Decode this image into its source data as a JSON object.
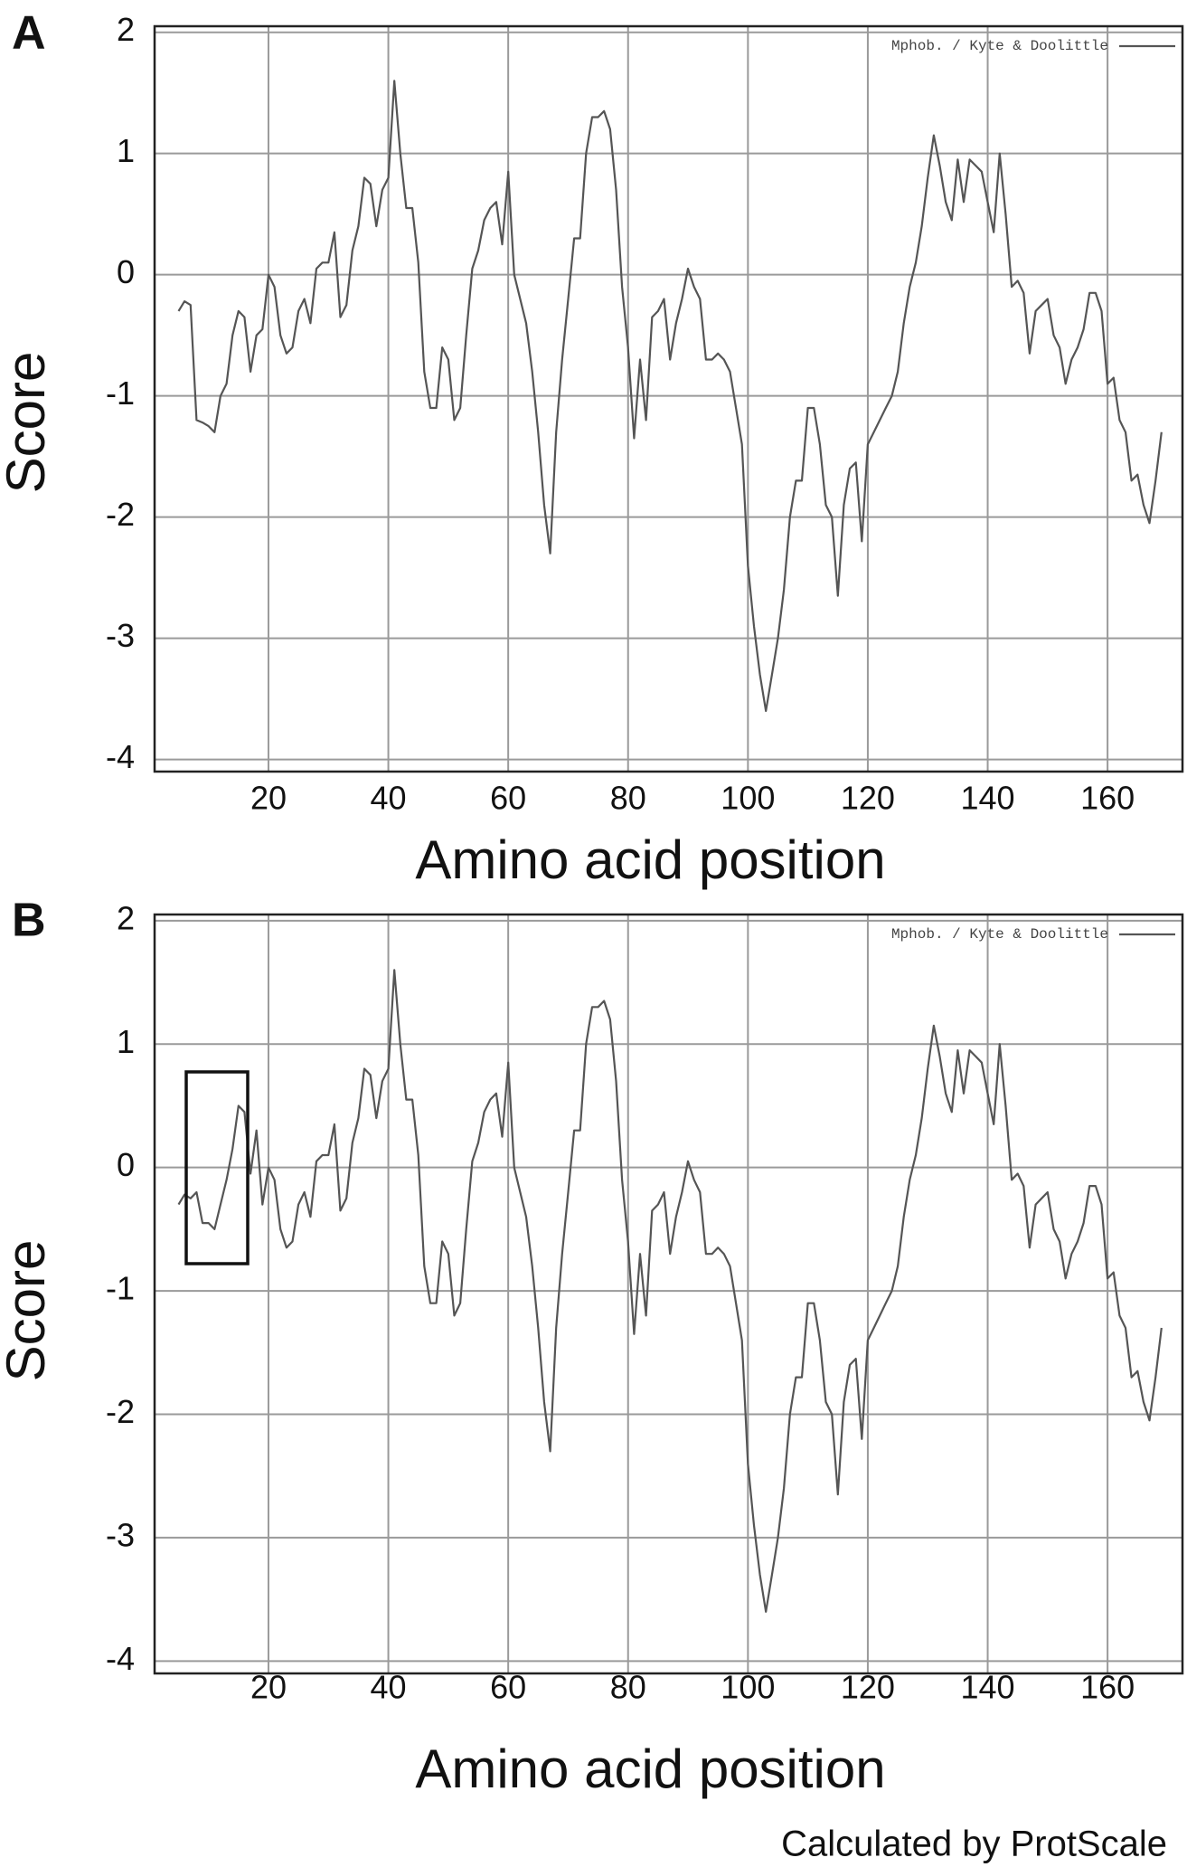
{
  "chart_data": [
    {
      "type": "line",
      "panel_label": "A",
      "legend": "Mphob. / Kyte & Doolittle",
      "xlabel": "Amino acid position",
      "ylabel": "Score",
      "xlim": [
        1,
        172.5
      ],
      "ylim": [
        -4.1,
        2.05
      ],
      "xticks": [
        20,
        40,
        60,
        80,
        100,
        120,
        140,
        160
      ],
      "yticks": [
        -4,
        -3,
        -2,
        -1,
        0,
        1,
        2
      ],
      "grid": true,
      "x": [
        5,
        6,
        7,
        8,
        9,
        10,
        11,
        12,
        13,
        14,
        15,
        16,
        17,
        18,
        19,
        20,
        21,
        22,
        23,
        24,
        25,
        26,
        27,
        28,
        29,
        30,
        31,
        32,
        33,
        34,
        35,
        36,
        37,
        38,
        39,
        40,
        41,
        42,
        43,
        44,
        45,
        46,
        47,
        48,
        49,
        50,
        51,
        52,
        53,
        54,
        55,
        56,
        57,
        58,
        59,
        60,
        61,
        62,
        63,
        64,
        65,
        66,
        67,
        68,
        69,
        70,
        71,
        72,
        73,
        74,
        75,
        76,
        77,
        78,
        79,
        80,
        81,
        82,
        83,
        84,
        85,
        86,
        87,
        88,
        89,
        90,
        91,
        92,
        93,
        94,
        95,
        96,
        97,
        98,
        99,
        100,
        101,
        102,
        103,
        104,
        105,
        106,
        107,
        108,
        109,
        110,
        111,
        112,
        113,
        114,
        115,
        116,
        117,
        118,
        119,
        120,
        121,
        122,
        123,
        124,
        125,
        126,
        127,
        128,
        129,
        130,
        131,
        132,
        133,
        134,
        135,
        136,
        137,
        138,
        139,
        140,
        141,
        142,
        143,
        144,
        145,
        146,
        147,
        148,
        149,
        150,
        151,
        152,
        153,
        154,
        155,
        156,
        157,
        158,
        159,
        160,
        161,
        162,
        163,
        164,
        165,
        166,
        167,
        168,
        169
      ],
      "series": [
        {
          "name": "Mphob. / Kyte & Doolittle",
          "color": "#555555",
          "values": [
            -0.3,
            -0.22,
            -0.25,
            -1.2,
            -1.22,
            -1.25,
            -1.3,
            -1.0,
            -0.9,
            -0.5,
            -0.3,
            -0.35,
            -0.8,
            -0.5,
            -0.45,
            0.0,
            -0.1,
            -0.5,
            -0.65,
            -0.6,
            -0.3,
            -0.2,
            -0.4,
            0.05,
            0.1,
            0.1,
            0.35,
            -0.35,
            -0.25,
            0.2,
            0.4,
            0.8,
            0.75,
            0.4,
            0.7,
            0.8,
            1.6,
            1.0,
            0.55,
            0.55,
            0.1,
            -0.8,
            -1.1,
            -1.1,
            -0.6,
            -0.7,
            -1.2,
            -1.1,
            -0.5,
            0.05,
            0.2,
            0.45,
            0.55,
            0.6,
            0.25,
            0.85,
            0.0,
            -0.2,
            -0.4,
            -0.8,
            -1.3,
            -1.9,
            -2.3,
            -1.3,
            -0.7,
            -0.2,
            0.3,
            0.3,
            1.0,
            1.3,
            1.3,
            1.35,
            1.2,
            0.7,
            -0.1,
            -0.6,
            -1.35,
            -0.7,
            -1.2,
            -0.35,
            -0.3,
            -0.2,
            -0.7,
            -0.4,
            -0.2,
            0.05,
            -0.1,
            -0.2,
            -0.7,
            -0.7,
            -0.65,
            -0.7,
            -0.8,
            -1.1,
            -1.4,
            -2.4,
            -2.9,
            -3.3,
            -3.6,
            -3.3,
            -3.0,
            -2.6,
            -2.0,
            -1.7,
            -1.7,
            -1.1,
            -1.1,
            -1.4,
            -1.9,
            -2.0,
            -2.65,
            -1.9,
            -1.6,
            -1.55,
            -2.2,
            -1.4,
            -1.3,
            -1.2,
            -1.1,
            -1.0,
            -0.8,
            -0.4,
            -0.1,
            0.1,
            0.4,
            0.8,
            1.15,
            0.9,
            0.6,
            0.45,
            0.95,
            0.6,
            0.95,
            0.9,
            0.85,
            0.6,
            0.35,
            1.0,
            0.5,
            -0.1,
            -0.05,
            -0.15,
            -0.65,
            -0.3,
            -0.25,
            -0.2,
            -0.5,
            -0.6,
            -0.9,
            -0.7,
            -0.6,
            -0.45,
            -0.15,
            -0.15,
            -0.3,
            -0.9,
            -0.85,
            -1.2,
            -1.3,
            -1.7,
            -1.65,
            -1.9,
            -2.05,
            -1.7,
            -1.3
          ]
        }
      ]
    },
    {
      "type": "line",
      "panel_label": "B",
      "legend": "Mphob. / Kyte & Doolittle",
      "xlabel": "Amino acid position",
      "ylabel": "Score",
      "xlim": [
        1,
        172.5
      ],
      "ylim": [
        -4.1,
        2.05
      ],
      "xticks": [
        20,
        40,
        60,
        80,
        100,
        120,
        140,
        160
      ],
      "yticks": [
        -4,
        -3,
        -2,
        -1,
        0,
        1,
        2
      ],
      "grid": true,
      "x": [
        5,
        6,
        7,
        8,
        9,
        10,
        11,
        12,
        13,
        14,
        15,
        16,
        17,
        18,
        19,
        20,
        21,
        22,
        23,
        24,
        25,
        26,
        27,
        28,
        29,
        30,
        31,
        32,
        33,
        34,
        35,
        36,
        37,
        38,
        39,
        40,
        41,
        42,
        43,
        44,
        45,
        46,
        47,
        48,
        49,
        50,
        51,
        52,
        53,
        54,
        55,
        56,
        57,
        58,
        59,
        60,
        61,
        62,
        63,
        64,
        65,
        66,
        67,
        68,
        69,
        70,
        71,
        72,
        73,
        74,
        75,
        76,
        77,
        78,
        79,
        80,
        81,
        82,
        83,
        84,
        85,
        86,
        87,
        88,
        89,
        90,
        91,
        92,
        93,
        94,
        95,
        96,
        97,
        98,
        99,
        100,
        101,
        102,
        103,
        104,
        105,
        106,
        107,
        108,
        109,
        110,
        111,
        112,
        113,
        114,
        115,
        116,
        117,
        118,
        119,
        120,
        121,
        122,
        123,
        124,
        125,
        126,
        127,
        128,
        129,
        130,
        131,
        132,
        133,
        134,
        135,
        136,
        137,
        138,
        139,
        140,
        141,
        142,
        143,
        144,
        145,
        146,
        147,
        148,
        149,
        150,
        151,
        152,
        153,
        154,
        155,
        156,
        157,
        158,
        159,
        160,
        161,
        162,
        163,
        164,
        165,
        166,
        167,
        168,
        169
      ],
      "series": [
        {
          "name": "Mphob. / Kyte & Doolittle",
          "color": "#555555",
          "values": [
            -0.3,
            -0.22,
            -0.25,
            -0.2,
            -0.45,
            -0.45,
            -0.5,
            -0.3,
            -0.1,
            0.15,
            0.5,
            0.45,
            -0.05,
            0.3,
            -0.3,
            0.0,
            -0.1,
            -0.5,
            -0.65,
            -0.6,
            -0.3,
            -0.2,
            -0.4,
            0.05,
            0.1,
            0.1,
            0.35,
            -0.35,
            -0.25,
            0.2,
            0.4,
            0.8,
            0.75,
            0.4,
            0.7,
            0.8,
            1.6,
            1.0,
            0.55,
            0.55,
            0.1,
            -0.8,
            -1.1,
            -1.1,
            -0.6,
            -0.7,
            -1.2,
            -1.1,
            -0.5,
            0.05,
            0.2,
            0.45,
            0.55,
            0.6,
            0.25,
            0.85,
            0.0,
            -0.2,
            -0.4,
            -0.8,
            -1.3,
            -1.9,
            -2.3,
            -1.3,
            -0.7,
            -0.2,
            0.3,
            0.3,
            1.0,
            1.3,
            1.3,
            1.35,
            1.2,
            0.7,
            -0.1,
            -0.6,
            -1.35,
            -0.7,
            -1.2,
            -0.35,
            -0.3,
            -0.2,
            -0.7,
            -0.4,
            -0.2,
            0.05,
            -0.1,
            -0.2,
            -0.7,
            -0.7,
            -0.65,
            -0.7,
            -0.8,
            -1.1,
            -1.4,
            -2.4,
            -2.9,
            -3.3,
            -3.6,
            -3.3,
            -3.0,
            -2.6,
            -2.0,
            -1.7,
            -1.7,
            -1.1,
            -1.1,
            -1.4,
            -1.9,
            -2.0,
            -2.65,
            -1.9,
            -1.6,
            -1.55,
            -2.2,
            -1.4,
            -1.3,
            -1.2,
            -1.1,
            -1.0,
            -0.8,
            -0.4,
            -0.1,
            0.1,
            0.4,
            0.8,
            1.15,
            0.9,
            0.6,
            0.45,
            0.95,
            0.6,
            0.95,
            0.9,
            0.85,
            0.6,
            0.35,
            1.0,
            0.5,
            -0.1,
            -0.05,
            -0.15,
            -0.65,
            -0.3,
            -0.25,
            -0.2,
            -0.5,
            -0.6,
            -0.9,
            -0.7,
            -0.6,
            -0.45,
            -0.15,
            -0.15,
            -0.3,
            -0.9,
            -0.85,
            -1.2,
            -1.3,
            -1.7,
            -1.65,
            -1.9,
            -2.05,
            -1.7,
            -1.3
          ]
        }
      ]
    }
  ],
  "footnote": "Calculated by ProtScale"
}
